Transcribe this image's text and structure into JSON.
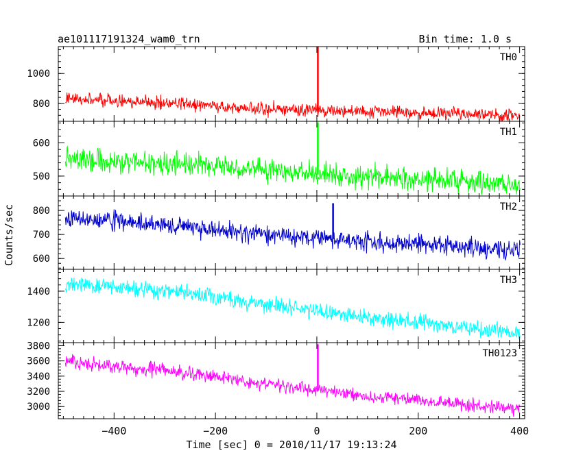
{
  "header": {
    "title": "ae101117191324_wam0_trn",
    "bin_time": "Bin time: 1.0 s"
  },
  "chart_data": {
    "type": "line",
    "x_axis": {
      "label": "Time [sec] 0 = 2010/11/17 19:13:24",
      "range": [
        -510,
        410
      ],
      "ticks": [
        -400,
        -200,
        0,
        200,
        400
      ],
      "tick_labels": [
        "−400",
        "−200",
        "0",
        "200",
        "400"
      ]
    },
    "y_axis_label": "Counts/sec",
    "panels": [
      {
        "name": "TH0",
        "color": "#ff0000",
        "ylim": [
          680,
          1180
        ],
        "yticks": [
          800,
          1000
        ],
        "ytick_labels": [
          "800",
          "1000"
        ],
        "trend": {
          "x": [
            -500,
            -300,
            -100,
            100,
            400
          ],
          "y": [
            835,
            805,
            760,
            745,
            720
          ]
        },
        "noise": 45,
        "spike": {
          "x": 2,
          "y": 1180
        }
      },
      {
        "name": "TH1",
        "color": "#00ff00",
        "ylim": [
          440,
          665
        ],
        "yticks": [
          500,
          600
        ],
        "ytick_labels": [
          "500",
          "600"
        ],
        "trend": {
          "x": [
            -500,
            -200,
            0,
            400
          ],
          "y": [
            555,
            530,
            505,
            475
          ]
        },
        "noise": 35,
        "spike": {
          "x": 2,
          "y": 662
        }
      },
      {
        "name": "TH2",
        "color": "#0000cc",
        "ylim": [
          555,
          860
        ],
        "yticks": [
          600,
          700,
          800
        ],
        "ytick_labels": [
          "600",
          "700",
          "800"
        ],
        "trend": {
          "x": [
            -500,
            -300,
            -100,
            100,
            400
          ],
          "y": [
            770,
            740,
            700,
            670,
            635
          ]
        },
        "noise": 40,
        "spike": {
          "x": 32,
          "y": 830
        }
      },
      {
        "name": "TH3",
        "color": "#00ffff",
        "ylim": [
          1070,
          1540
        ],
        "yticks": [
          1200,
          1400
        ],
        "ytick_labels": [
          "1200",
          "1400"
        ],
        "trend": {
          "x": [
            -500,
            -300,
            -100,
            100,
            400
          ],
          "y": [
            1450,
            1400,
            1320,
            1230,
            1130
          ]
        },
        "noise": 55,
        "spike": null
      },
      {
        "name": "TH0123",
        "color": "#ff00ff",
        "ylim": [
          2840,
          3840
        ],
        "yticks": [
          3000,
          3200,
          3400,
          3600,
          3800
        ],
        "ytick_labels": [
          "3000",
          "3200",
          "3400",
          "3600",
          "3800"
        ],
        "trend": {
          "x": [
            -500,
            -300,
            -100,
            100,
            400
          ],
          "y": [
            3600,
            3470,
            3300,
            3130,
            2970
          ]
        },
        "noise": 90,
        "spike": {
          "x": 2,
          "y": 3820
        }
      }
    ]
  }
}
